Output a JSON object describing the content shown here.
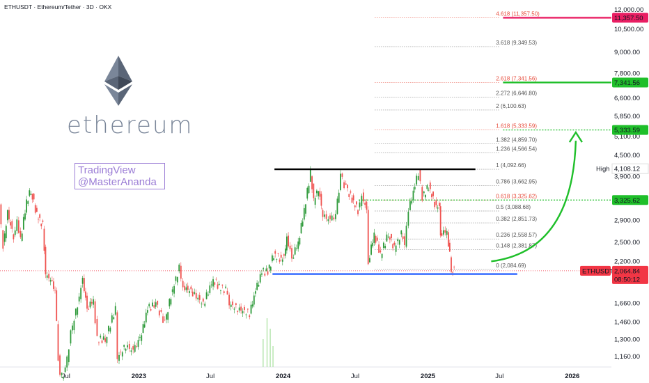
{
  "header": {
    "title": "ETHUSDT · Ethereum/Tether · 3D · OKX"
  },
  "watermark": {
    "brand": "ethereum",
    "line1": "TradingView",
    "line2": "@MasterAnanda"
  },
  "colors": {
    "up": "#26a69a",
    "down": "#ef5350",
    "upCandle": "#2e9a3a",
    "fibRed": "#e74c3c",
    "fibGrey": "#555555",
    "green": "#1fbf2a",
    "magenta": "#e91e63",
    "blue": "#2962ff",
    "black": "#000000",
    "price": "#f23645"
  },
  "chart_data": {
    "type": "line",
    "scale": "log",
    "y_ticks": [
      12000,
      10500,
      9000,
      7800,
      6600,
      5850,
      5100,
      4500,
      3900,
      3300,
      2900,
      2500,
      2200,
      1930,
      1660,
      1460,
      1300,
      1160
    ],
    "y_tick_labels": [
      "12,000.00",
      "10,500.00",
      "9,000.00",
      "7,800.00",
      "6,600.00",
      "5,850.00",
      "5,100.00",
      "4,500.00",
      "3,900.00",
      "3,300.00",
      "2,900.00",
      "2,500.00",
      "2,200.00",
      "1,930.00",
      "1,660.00",
      "1,460.00",
      "1,300.00",
      "1,160.00"
    ],
    "x_ticks": [
      "Jul",
      "2023",
      "Jul",
      "2024",
      "Jul",
      "2025",
      "Jul",
      "2026"
    ],
    "x_tick_dates": [
      "2022-07-01",
      "2023-01-01",
      "2023-07-01",
      "2024-01-01",
      "2024-07-01",
      "2025-01-01",
      "2025-07-01",
      "2026-01-01"
    ],
    "ylim": [
      1080,
      12800
    ],
    "xlim": [
      "2022-01-15",
      "2026-04-10"
    ],
    "price_path": [
      {
        "date": "2022-01-15",
        "value": 3150
      },
      {
        "date": "2022-01-25",
        "value": 2450
      },
      {
        "date": "2022-02-05",
        "value": 3050
      },
      {
        "date": "2022-02-20",
        "value": 2600
      },
      {
        "date": "2022-03-01",
        "value": 2900
      },
      {
        "date": "2022-03-10",
        "value": 2550
      },
      {
        "date": "2022-03-25",
        "value": 3300
      },
      {
        "date": "2022-04-05",
        "value": 3550
      },
      {
        "date": "2022-04-20",
        "value": 3000
      },
      {
        "date": "2022-05-05",
        "value": 2800
      },
      {
        "date": "2022-05-12",
        "value": 2000
      },
      {
        "date": "2022-05-25",
        "value": 1950
      },
      {
        "date": "2022-06-05",
        "value": 1800
      },
      {
        "date": "2022-06-13",
        "value": 1150
      },
      {
        "date": "2022-06-18",
        "value": 1000
      },
      {
        "date": "2022-07-01",
        "value": 1050
      },
      {
        "date": "2022-07-15",
        "value": 1350
      },
      {
        "date": "2022-08-01",
        "value": 1650
      },
      {
        "date": "2022-08-14",
        "value": 1950
      },
      {
        "date": "2022-08-25",
        "value": 1600
      },
      {
        "date": "2022-09-10",
        "value": 1700
      },
      {
        "date": "2022-09-20",
        "value": 1300
      },
      {
        "date": "2022-10-10",
        "value": 1300
      },
      {
        "date": "2022-11-05",
        "value": 1600
      },
      {
        "date": "2022-11-10",
        "value": 1150
      },
      {
        "date": "2022-12-01",
        "value": 1250
      },
      {
        "date": "2022-12-20",
        "value": 1200
      },
      {
        "date": "2023-01-10",
        "value": 1350
      },
      {
        "date": "2023-01-25",
        "value": 1600
      },
      {
        "date": "2023-02-15",
        "value": 1650
      },
      {
        "date": "2023-03-10",
        "value": 1450
      },
      {
        "date": "2023-03-25",
        "value": 1750
      },
      {
        "date": "2023-04-15",
        "value": 2100
      },
      {
        "date": "2023-04-25",
        "value": 1850
      },
      {
        "date": "2023-05-15",
        "value": 1800
      },
      {
        "date": "2023-06-15",
        "value": 1650
      },
      {
        "date": "2023-07-10",
        "value": 1950
      },
      {
        "date": "2023-07-25",
        "value": 1850
      },
      {
        "date": "2023-08-15",
        "value": 1800
      },
      {
        "date": "2023-08-20",
        "value": 1650
      },
      {
        "date": "2023-09-10",
        "value": 1600
      },
      {
        "date": "2023-10-10",
        "value": 1550
      },
      {
        "date": "2023-10-25",
        "value": 1800
      },
      {
        "date": "2023-11-10",
        "value": 2050
      },
      {
        "date": "2023-11-25",
        "value": 2050
      },
      {
        "date": "2023-12-10",
        "value": 2300
      },
      {
        "date": "2023-12-25",
        "value": 2250
      },
      {
        "date": "2024-01-05",
        "value": 2250
      },
      {
        "date": "2024-01-12",
        "value": 2600
      },
      {
        "date": "2024-01-25",
        "value": 2250
      },
      {
        "date": "2024-02-10",
        "value": 2500
      },
      {
        "date": "2024-02-25",
        "value": 3100
      },
      {
        "date": "2024-03-12",
        "value": 4000
      },
      {
        "date": "2024-03-20",
        "value": 3300
      },
      {
        "date": "2024-04-01",
        "value": 3600
      },
      {
        "date": "2024-04-12",
        "value": 3000
      },
      {
        "date": "2024-05-01",
        "value": 2900
      },
      {
        "date": "2024-05-15",
        "value": 3000
      },
      {
        "date": "2024-05-27",
        "value": 3900
      },
      {
        "date": "2024-06-10",
        "value": 3600
      },
      {
        "date": "2024-06-25",
        "value": 3350
      },
      {
        "date": "2024-07-10",
        "value": 3100
      },
      {
        "date": "2024-07-20",
        "value": 3450
      },
      {
        "date": "2024-08-01",
        "value": 3100
      },
      {
        "date": "2024-08-05",
        "value": 2200
      },
      {
        "date": "2024-08-20",
        "value": 2650
      },
      {
        "date": "2024-09-05",
        "value": 2300
      },
      {
        "date": "2024-09-25",
        "value": 2650
      },
      {
        "date": "2024-10-10",
        "value": 2400
      },
      {
        "date": "2024-10-28",
        "value": 2650
      },
      {
        "date": "2024-11-05",
        "value": 2450
      },
      {
        "date": "2024-11-15",
        "value": 3100
      },
      {
        "date": "2024-12-01",
        "value": 3650
      },
      {
        "date": "2024-12-10",
        "value": 4000
      },
      {
        "date": "2024-12-20",
        "value": 3400
      },
      {
        "date": "2025-01-05",
        "value": 3650
      },
      {
        "date": "2025-01-20",
        "value": 3250
      },
      {
        "date": "2025-02-01",
        "value": 3150
      },
      {
        "date": "2025-02-03",
        "value": 2650
      },
      {
        "date": "2025-02-20",
        "value": 2700
      },
      {
        "date": "2025-02-27",
        "value": 2300
      },
      {
        "date": "2025-03-03",
        "value": 2100
      },
      {
        "date": "2025-03-10",
        "value": 2064.84
      }
    ],
    "fib_levels": [
      {
        "ratio": "4.618",
        "value": 11357.5,
        "label": "4.618 (11,357.50)",
        "color": "red"
      },
      {
        "ratio": "3.618",
        "value": 9349.53,
        "label": "3.618 (9,349.53)",
        "color": "grey"
      },
      {
        "ratio": "2.618",
        "value": 7341.56,
        "label": "2.618 (7,341.56)",
        "color": "red"
      },
      {
        "ratio": "2.272",
        "value": 6646.8,
        "label": "2.272 (6,646.80)",
        "color": "grey"
      },
      {
        "ratio": "2",
        "value": 6100.63,
        "label": "2 (6,100.63)",
        "color": "grey"
      },
      {
        "ratio": "1.618",
        "value": 5333.59,
        "label": "1.618 (5,333.59)",
        "color": "red"
      },
      {
        "ratio": "1.382",
        "value": 4859.7,
        "label": "1.382 (4,859.70)",
        "color": "grey"
      },
      {
        "ratio": "1.236",
        "value": 4566.54,
        "label": "1.236 (4,566.54)",
        "color": "grey"
      },
      {
        "ratio": "1",
        "value": 4092.66,
        "label": "1 (4,092.66)",
        "color": "grey"
      },
      {
        "ratio": "0.786",
        "value": 3662.95,
        "label": "0.786 (3,662.95)",
        "color": "grey"
      },
      {
        "ratio": "0.618",
        "value": 3325.62,
        "label": "0.618 (3,325.62)",
        "color": "red"
      },
      {
        "ratio": "0.5",
        "value": 3088.68,
        "label": "0.5 (3,088.68)",
        "color": "grey"
      },
      {
        "ratio": "0.382",
        "value": 2851.73,
        "label": "0.382 (2,851.73)",
        "color": "grey"
      },
      {
        "ratio": "0.236",
        "value": 2558.57,
        "label": "0.236 (2,558.57)",
        "color": "grey"
      },
      {
        "ratio": "0.148",
        "value": 2381.87,
        "label": "0.148 (2,381.87)",
        "color": "grey"
      },
      {
        "ratio": "0",
        "value": 2084.69,
        "label": "0 (2,084.69)",
        "color": "grey"
      }
    ],
    "horizontal_lines": [
      {
        "name": "resistance",
        "value": 4092.66,
        "color": "black",
        "from": "2023-12-10",
        "to": "2025-05-01"
      },
      {
        "name": "support",
        "value": 2020,
        "color": "blue",
        "from": "2023-12-05",
        "to": "2025-08-15"
      },
      {
        "name": "target-11357",
        "value": 11357.5,
        "color": "magenta",
        "from": "2025-07-10",
        "to": "2026-04-10"
      },
      {
        "name": "target-7341",
        "value": 7341.56,
        "color": "green",
        "from": "2025-07-10",
        "to": "2026-04-10"
      },
      {
        "name": "target-5333",
        "value": 5333.59,
        "color": "green-dotted",
        "from": "2025-07-10",
        "to": "2026-04-10"
      },
      {
        "name": "level-3325",
        "value": 3325.62,
        "color": "green-dotted",
        "from": "2024-07-10",
        "to": "2026-04-10"
      }
    ],
    "projection_arrow": {
      "from": {
        "date": "2025-06-10",
        "value": 2200
      },
      "to": {
        "date": "2026-01-10",
        "value": 5100
      }
    },
    "price_tags": [
      {
        "name": "tag-11357",
        "text": "11,357.50",
        "value": 11357.5,
        "color": "#e91e63"
      },
      {
        "name": "tag-7341",
        "text": "7,341.56",
        "value": 7341.56,
        "color": "#1fbf2a"
      },
      {
        "name": "tag-5333",
        "text": "5,333.59",
        "value": 5333.59,
        "color": "#1fbf2a"
      },
      {
        "name": "tag-3325",
        "text": "3,325.62",
        "value": 3325.62,
        "color": "#1fbf2a"
      }
    ],
    "high": {
      "label": "High",
      "value": 4108.12,
      "text": "4,108.12"
    },
    "current": {
      "symbol": "ETHUSDT",
      "price": 2064.84,
      "price_text": "2,064.84",
      "countdown": "08:50:12"
    }
  }
}
